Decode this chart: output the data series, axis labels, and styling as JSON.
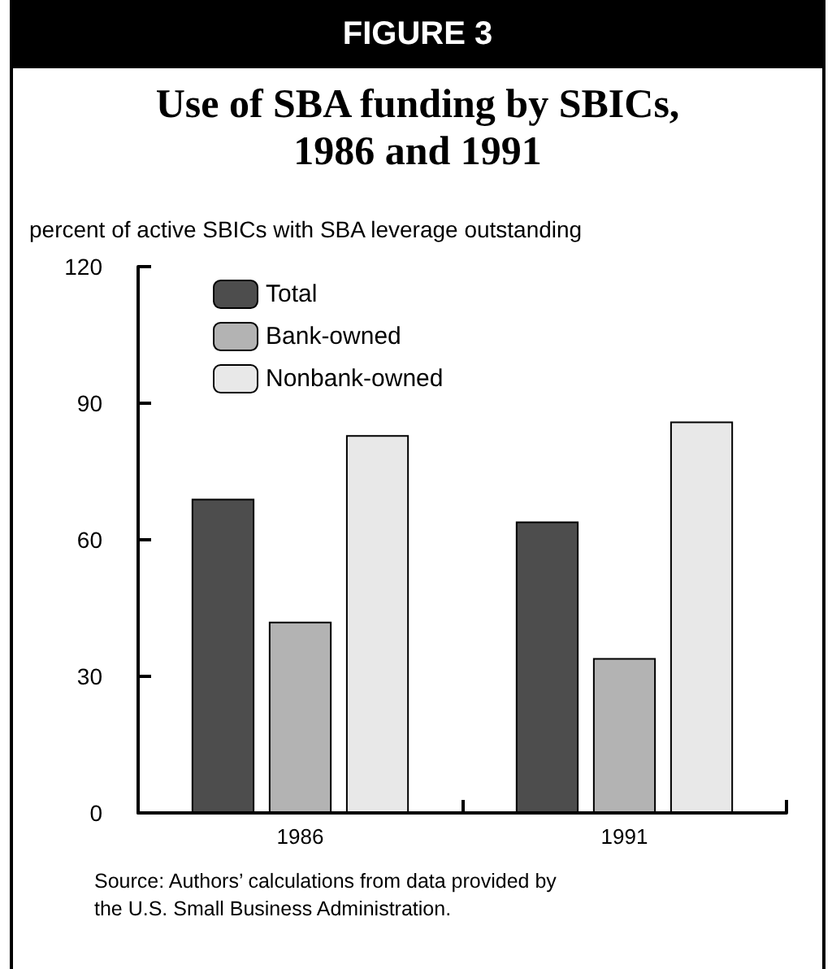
{
  "chart_data": {
    "type": "bar",
    "title": "FIGURE 3",
    "subtitle": "Use of SBA funding by SBICs,\n1986 and 1991",
    "ylabel": "percent of active SBICs with SBA leverage outstanding",
    "annotations": [
      "Source: Authors’ calculations from data provided by\nthe U.S. Small Business Administration."
    ],
    "categories": [
      "1986",
      "1991"
    ],
    "series": [
      {
        "name": "Total",
        "color": "#4d4d4d",
        "values": [
          69,
          64
        ]
      },
      {
        "name": "Bank-owned",
        "color": "#b3b3b3",
        "values": [
          42,
          34
        ]
      },
      {
        "name": "Nonbank-owned",
        "color": "#e8e8e8",
        "values": [
          83,
          86
        ]
      }
    ],
    "ylim": [
      0,
      120
    ],
    "yticks": [
      0,
      30,
      60,
      90,
      120
    ],
    "grid": false,
    "legend": "top left"
  }
}
